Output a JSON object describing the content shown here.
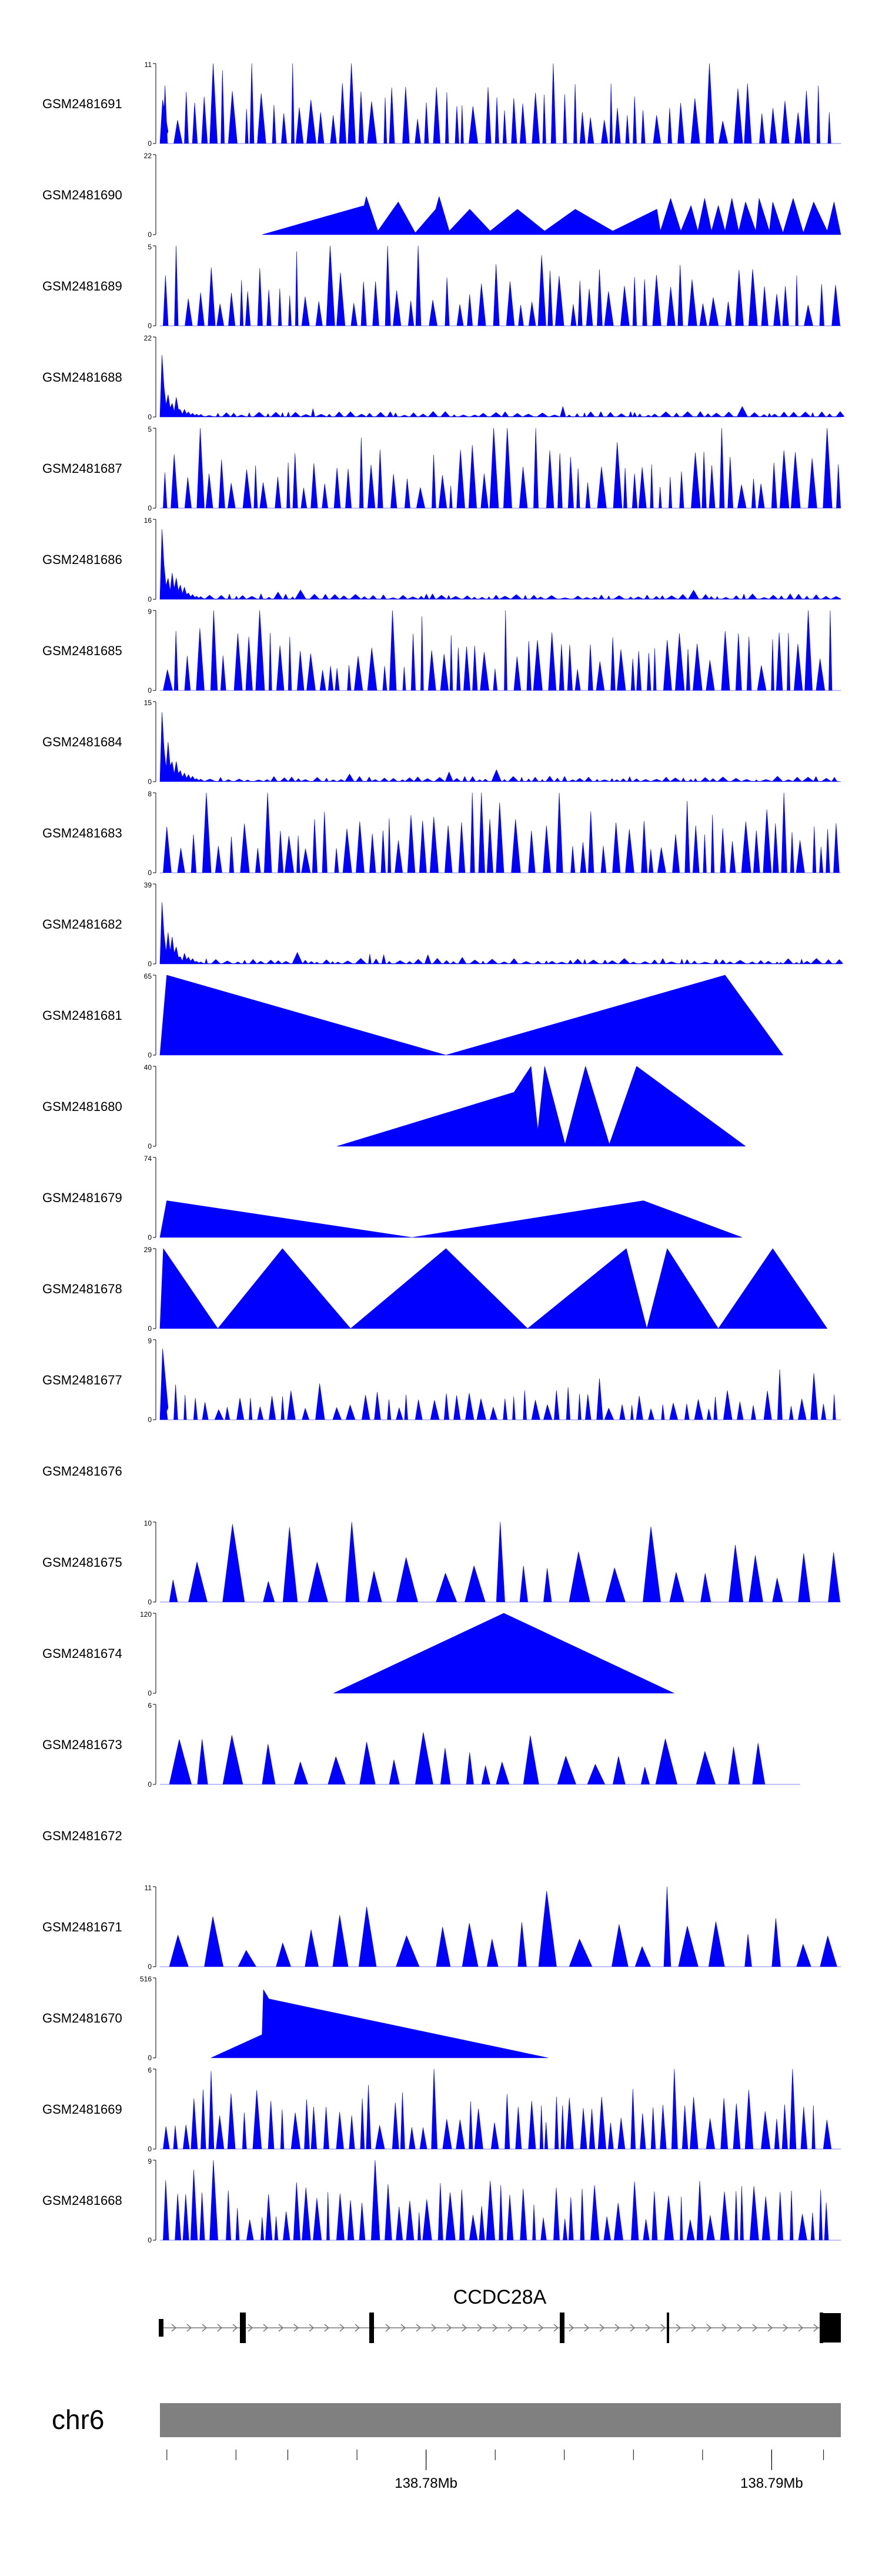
{
  "chart_data": {
    "type": "area",
    "title": "",
    "chromosome": "chr6",
    "gene": {
      "name": "CCDC28A"
    },
    "x_axis": {
      "unit": "Mb",
      "range": [
        138.7723,
        138.792
      ],
      "major_ticks": [
        138.78,
        138.79
      ],
      "major_labels": [
        "138.78Mb",
        "138.79Mb"
      ],
      "minor_ticks": [
        138.7725,
        138.7745,
        138.776,
        138.778,
        138.78,
        138.782,
        138.784,
        138.786,
        138.788,
        138.79,
        138.7915
      ]
    },
    "series": [
      {
        "name": "GSM2481691",
        "ymax": 11,
        "pattern": "dense",
        "seed": 11,
        "front": 6
      },
      {
        "name": "GSM2481690",
        "ymax": 22,
        "pattern": "peaks",
        "points": [
          [
            0.15,
            0
          ],
          [
            0.3,
            8
          ],
          [
            0.303,
            10.5
          ],
          [
            0.32,
            1
          ],
          [
            0.35,
            9
          ],
          [
            0.375,
            0.5
          ],
          [
            0.405,
            7
          ],
          [
            0.41,
            10.5
          ],
          [
            0.425,
            1
          ],
          [
            0.455,
            7
          ],
          [
            0.485,
            1
          ],
          [
            0.525,
            7
          ],
          [
            0.565,
            1
          ],
          [
            0.61,
            7
          ],
          [
            0.665,
            1
          ],
          [
            0.73,
            7
          ],
          [
            0.735,
            1
          ],
          [
            0.75,
            10
          ],
          [
            0.765,
            1
          ],
          [
            0.78,
            8
          ],
          [
            0.79,
            1
          ],
          [
            0.8,
            10
          ],
          [
            0.81,
            1
          ],
          [
            0.82,
            8
          ],
          [
            0.83,
            1
          ],
          [
            0.84,
            10
          ],
          [
            0.85,
            1
          ],
          [
            0.86,
            9
          ],
          [
            0.875,
            1
          ],
          [
            0.88,
            10
          ],
          [
            0.895,
            1
          ],
          [
            0.9,
            9
          ],
          [
            0.915,
            0.5
          ],
          [
            0.93,
            10
          ],
          [
            0.945,
            0.5
          ],
          [
            0.96,
            9
          ],
          [
            0.98,
            1
          ],
          [
            0.99,
            9
          ],
          [
            1.0,
            0
          ]
        ]
      },
      {
        "name": "GSM2481689",
        "ymax": 5,
        "pattern": "dense",
        "seed": 89
      },
      {
        "name": "GSM2481688",
        "ymax": 22,
        "pattern": "decay",
        "seed": 88,
        "front": 17
      },
      {
        "name": "GSM2481687",
        "ymax": 5,
        "pattern": "dense",
        "seed": 87
      },
      {
        "name": "GSM2481686",
        "ymax": 16,
        "pattern": "decay",
        "seed": 86,
        "front": 14
      },
      {
        "name": "GSM2481685",
        "ymax": 9,
        "pattern": "dense",
        "seed": 85
      },
      {
        "name": "GSM2481684",
        "ymax": 15,
        "pattern": "decay",
        "seed": 84,
        "front": 13
      },
      {
        "name": "GSM2481683",
        "ymax": 8,
        "pattern": "dense",
        "seed": 83
      },
      {
        "name": "GSM2481682",
        "ymax": 39,
        "pattern": "decay",
        "seed": 82,
        "front": 30
      },
      {
        "name": "GSM2481681",
        "ymax": 65,
        "pattern": "peaks",
        "points": [
          [
            0.0,
            0
          ],
          [
            0.01,
            65
          ],
          [
            0.42,
            0
          ],
          [
            0.83,
            65
          ],
          [
            0.915,
            0
          ]
        ]
      },
      {
        "name": "GSM2481680",
        "ymax": 40,
        "pattern": "peaks",
        "points": [
          [
            0.26,
            0
          ],
          [
            0.52,
            27
          ],
          [
            0.545,
            40
          ],
          [
            0.555,
            8
          ],
          [
            0.565,
            40
          ],
          [
            0.595,
            1
          ],
          [
            0.625,
            40
          ],
          [
            0.66,
            1
          ],
          [
            0.7,
            40
          ],
          [
            0.86,
            0
          ]
        ]
      },
      {
        "name": "GSM2481679",
        "ymax": 74,
        "pattern": "peaks",
        "points": [
          [
            0.0,
            0
          ],
          [
            0.01,
            34
          ],
          [
            0.37,
            0
          ],
          [
            0.71,
            34
          ],
          [
            0.855,
            0
          ]
        ]
      },
      {
        "name": "GSM2481678",
        "ymax": 29,
        "pattern": "peaks",
        "points": [
          [
            0.0,
            0
          ],
          [
            0.005,
            29
          ],
          [
            0.085,
            0
          ],
          [
            0.18,
            29
          ],
          [
            0.28,
            0
          ],
          [
            0.42,
            29
          ],
          [
            0.54,
            0
          ],
          [
            0.685,
            29
          ],
          [
            0.715,
            0
          ],
          [
            0.745,
            29
          ],
          [
            0.82,
            0
          ],
          [
            0.9,
            29
          ],
          [
            0.98,
            0
          ]
        ]
      },
      {
        "name": "GSM2481677",
        "ymax": 9,
        "pattern": "dense",
        "seed": 77,
        "scale": 0.5,
        "front": 8
      },
      {
        "name": "GSM2481676",
        "ymax": null,
        "pattern": "empty"
      },
      {
        "name": "GSM2481675",
        "ymax": 10,
        "pattern": "sparse",
        "seed": 75
      },
      {
        "name": "GSM2481674",
        "ymax": 120,
        "pattern": "peaks",
        "points": [
          [
            0.255,
            0
          ],
          [
            0.505,
            120
          ],
          [
            0.755,
            0
          ]
        ]
      },
      {
        "name": "GSM2481673",
        "ymax": 6,
        "pattern": "sparse",
        "seed": 73,
        "end": 0.94
      },
      {
        "name": "GSM2481672",
        "ymax": null,
        "pattern": "empty"
      },
      {
        "name": "GSM2481671",
        "ymax": 11,
        "pattern": "sparse",
        "seed": 71
      },
      {
        "name": "GSM2481670",
        "ymax": 516,
        "pattern": "peaks",
        "points": [
          [
            0.075,
            0
          ],
          [
            0.15,
            150
          ],
          [
            0.152,
            440
          ],
          [
            0.16,
            380
          ],
          [
            0.57,
            0
          ]
        ]
      },
      {
        "name": "GSM2481669",
        "ymax": 6,
        "pattern": "dense",
        "seed": 69
      },
      {
        "name": "GSM2481668",
        "ymax": 9,
        "pattern": "dense",
        "seed": 68
      }
    ]
  }
}
